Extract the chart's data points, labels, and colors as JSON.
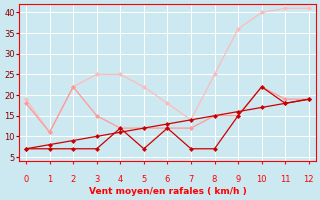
{
  "x": [
    0,
    1,
    2,
    3,
    4,
    5,
    6,
    7,
    8,
    9,
    10,
    11,
    12
  ],
  "line1_x": [
    0,
    1,
    2,
    3,
    4,
    5,
    6,
    7,
    8,
    9,
    10,
    11,
    12
  ],
  "line1_y": [
    7,
    7,
    7,
    7,
    12,
    7,
    12,
    7,
    7,
    15,
    22,
    18,
    19
  ],
  "line2_x": [
    0,
    1,
    2,
    3,
    4,
    5,
    6,
    7,
    8,
    9,
    10,
    11,
    12
  ],
  "line2_y": [
    7,
    8,
    9,
    10,
    11,
    12,
    13,
    14,
    15,
    16,
    17,
    18,
    19
  ],
  "line3_x": [
    0,
    1,
    2,
    3,
    4,
    5,
    6,
    7,
    8,
    9,
    10,
    11,
    12
  ],
  "line3_y": [
    18,
    11,
    22,
    15,
    12,
    12,
    12,
    12,
    15,
    15,
    22,
    19,
    19
  ],
  "line4_x": [
    0,
    1,
    2,
    3,
    4,
    5,
    6,
    7,
    8,
    9,
    10,
    11,
    12
  ],
  "line4_y": [
    19,
    11,
    22,
    25,
    25,
    22,
    18,
    14,
    25,
    36,
    40,
    41,
    41
  ],
  "color_dark": "#cc0000",
  "color_light": "#ff9999",
  "color_lighter": "#ffbbbb",
  "bg_color": "#cce8f0",
  "grid_color": "#ffffff",
  "xlabel": "Vent moyen/en rafales ( km/h )",
  "ylim": [
    4,
    42
  ],
  "xlim": [
    -0.3,
    12.3
  ],
  "yticks": [
    5,
    10,
    15,
    20,
    25,
    30,
    35,
    40
  ],
  "xticks": [
    0,
    1,
    2,
    3,
    4,
    5,
    6,
    7,
    8,
    9,
    10,
    11,
    12
  ],
  "arrow_angles_deg": [
    45,
    45,
    45,
    45,
    45,
    0,
    0,
    0,
    45,
    45,
    45,
    45,
    45
  ]
}
